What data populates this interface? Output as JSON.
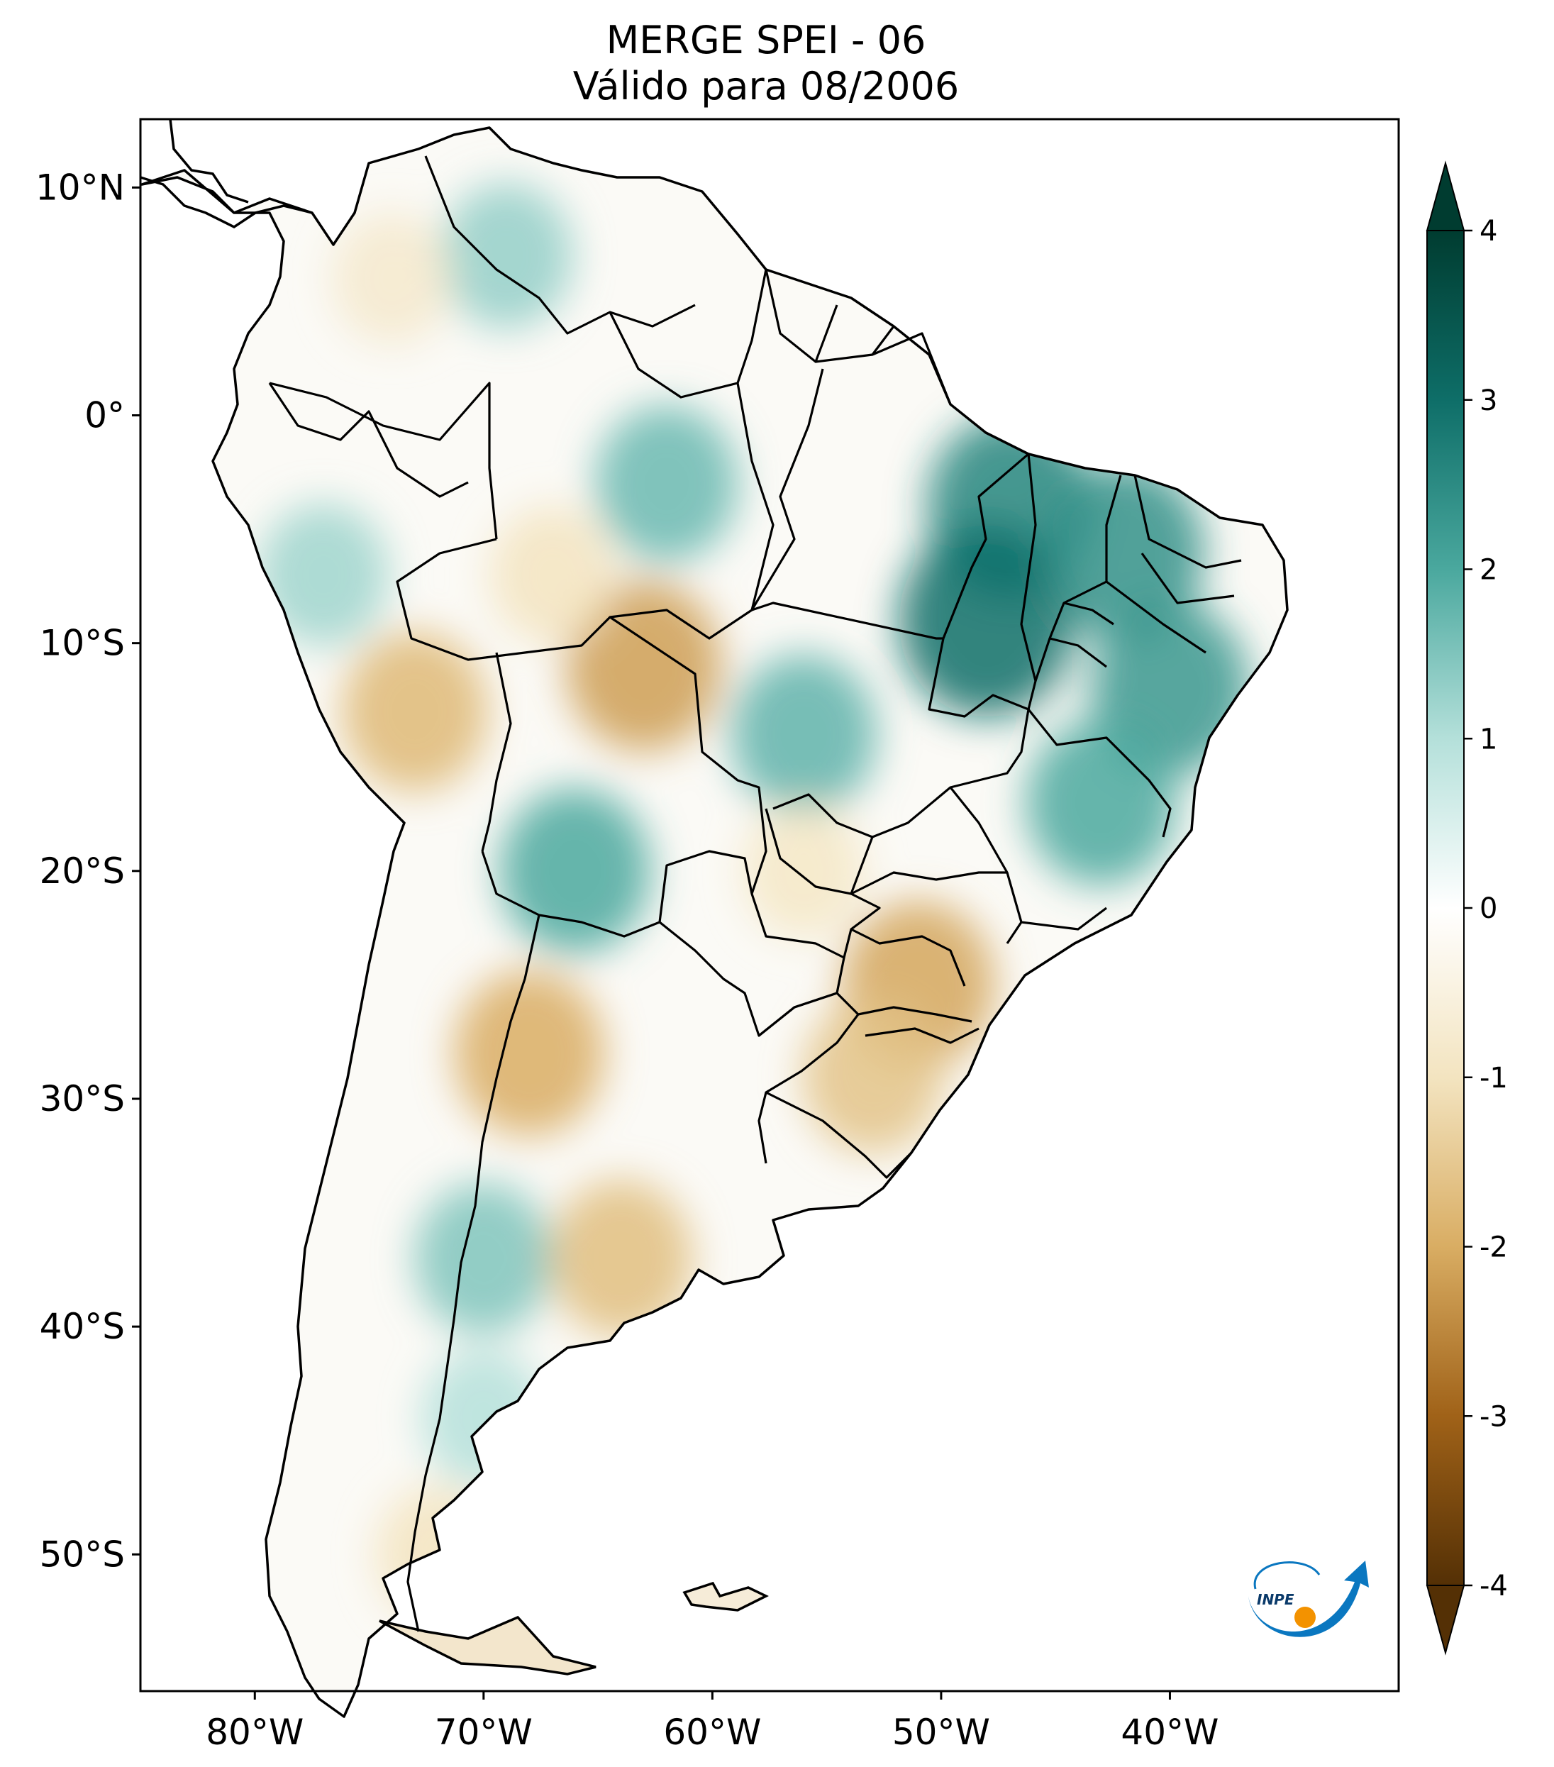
{
  "title": {
    "line1": "MERGE   SPEI - 06",
    "line2": "Válido para 08/2006"
  },
  "map": {
    "region": "South America",
    "lon_range": [
      -85,
      -30
    ],
    "lat_range": [
      -56,
      13
    ],
    "lat_ticks": [
      {
        "value": 10,
        "label": "10°N"
      },
      {
        "value": 0,
        "label": "0°"
      },
      {
        "value": -10,
        "label": "10°S"
      },
      {
        "value": -20,
        "label": "20°S"
      },
      {
        "value": -30,
        "label": "30°S"
      },
      {
        "value": -40,
        "label": "40°S"
      },
      {
        "value": -50,
        "label": "50°S"
      }
    ],
    "lon_ticks": [
      {
        "value": -80,
        "label": "80°W"
      },
      {
        "value": -70,
        "label": "70°W"
      },
      {
        "value": -60,
        "label": "60°W"
      },
      {
        "value": -50,
        "label": "50°W"
      },
      {
        "value": -40,
        "label": "40°W"
      }
    ],
    "field_patches": [
      {
        "lon": -47,
        "lat": -4,
        "value": 2.6
      },
      {
        "lon": -48,
        "lat": -9,
        "value": 3.0
      },
      {
        "lon": -42,
        "lat": -6,
        "value": 2.4
      },
      {
        "lon": -40,
        "lat": -12,
        "value": 2.3
      },
      {
        "lon": -43,
        "lat": -17,
        "value": 2.0
      },
      {
        "lon": -56,
        "lat": -14,
        "value": 1.8
      },
      {
        "lon": -62,
        "lat": -3,
        "value": 1.7
      },
      {
        "lon": -66,
        "lat": -20,
        "value": 2.0
      },
      {
        "lon": -69,
        "lat": 7,
        "value": 1.3
      },
      {
        "lon": -77,
        "lat": -7,
        "value": 1.2
      },
      {
        "lon": -70,
        "lat": -37,
        "value": 1.5
      },
      {
        "lon": -70,
        "lat": -44,
        "value": 1.0
      },
      {
        "lon": -63,
        "lat": -11,
        "value": -2.2
      },
      {
        "lon": -73,
        "lat": -13,
        "value": -1.8
      },
      {
        "lon": -67,
        "lat": -7,
        "value": -1.0
      },
      {
        "lon": -68,
        "lat": -28,
        "value": -2.0
      },
      {
        "lon": -64,
        "lat": -37,
        "value": -1.7
      },
      {
        "lon": -51,
        "lat": -25,
        "value": -2.1
      },
      {
        "lon": -53,
        "lat": -29,
        "value": -1.6
      },
      {
        "lon": -56,
        "lat": -20,
        "value": -0.9
      },
      {
        "lon": -72,
        "lat": -50,
        "value": -1.0
      },
      {
        "lon": -74,
        "lat": 6,
        "value": -0.8
      }
    ]
  },
  "colorbar": {
    "ticks": [
      {
        "value": 4,
        "label": "4"
      },
      {
        "value": 3,
        "label": "3"
      },
      {
        "value": 2,
        "label": "2"
      },
      {
        "value": 1,
        "label": "1"
      },
      {
        "value": 0,
        "label": "0"
      },
      {
        "value": -1,
        "label": "-1"
      },
      {
        "value": -2,
        "label": "-2"
      },
      {
        "value": -3,
        "label": "-3"
      },
      {
        "value": -4,
        "label": "-4"
      }
    ],
    "range": [
      -4,
      4
    ],
    "extend": "both",
    "colormap": "BrBG",
    "colors": {
      "max": "#003c30",
      "v3": "#0e6e68",
      "v2": "#4aa89e",
      "v1": "#b4e0da",
      "zero": "#ffffff",
      "vm1": "#f3e4c0",
      "vm2": "#d9ad63",
      "vm3": "#a06218",
      "min": "#543005"
    }
  },
  "logo": {
    "text": "INPE",
    "colors": {
      "blue": "#0a77c0",
      "orange": "#f39200"
    }
  }
}
